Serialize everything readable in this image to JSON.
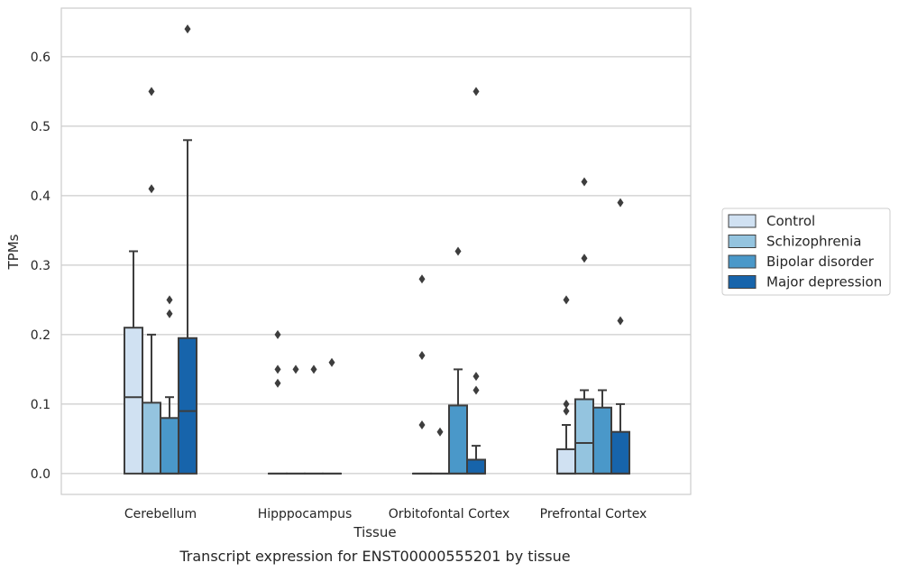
{
  "chart_data": {
    "type": "box",
    "title": "",
    "caption": "Transcript expression for ENST00000555201 by tissue",
    "xlabel": "Tissue",
    "ylabel": "TPMs",
    "ylim": [
      -0.03,
      0.67
    ],
    "yticks": [
      "0.0",
      "0.1",
      "0.2",
      "0.3",
      "0.4",
      "0.5",
      "0.6"
    ],
    "grid": "horizontal",
    "legend_position": "right",
    "categories": [
      "Cerebellum",
      "Hipppocampus",
      "Orbitofontal Cortex",
      "Prefrontal Cortex"
    ],
    "series": [
      {
        "name": "Control",
        "color": "#d0e1f2",
        "boxes": [
          {
            "q1": 0.0,
            "median": 0.11,
            "q3": 0.21,
            "whisker_low": 0.0,
            "whisker_high": 0.32,
            "fliers": []
          },
          {
            "q1": 0.0,
            "median": 0.0,
            "q3": 0.0,
            "whisker_low": 0.0,
            "whisker_high": 0.0,
            "fliers": [
              0.2,
              0.15,
              0.13
            ]
          },
          {
            "q1": 0.0,
            "median": 0.0,
            "q3": 0.0,
            "whisker_low": 0.0,
            "whisker_high": 0.0,
            "fliers": [
              0.28,
              0.17,
              0.07
            ]
          },
          {
            "q1": 0.0,
            "median": 0.0,
            "q3": 0.035,
            "whisker_low": 0.0,
            "whisker_high": 0.07,
            "fliers": [
              0.25,
              0.1,
              0.09
            ]
          }
        ]
      },
      {
        "name": "Schizophrenia",
        "color": "#94c4df",
        "boxes": [
          {
            "q1": 0.0,
            "median": 0.0,
            "q3": 0.102,
            "whisker_low": 0.0,
            "whisker_high": 0.2,
            "fliers": [
              0.55,
              0.41
            ]
          },
          {
            "q1": 0.0,
            "median": 0.0,
            "q3": 0.0,
            "whisker_low": 0.0,
            "whisker_high": 0.0,
            "fliers": [
              0.15
            ]
          },
          {
            "q1": 0.0,
            "median": 0.0,
            "q3": 0.0,
            "whisker_low": 0.0,
            "whisker_high": 0.0,
            "fliers": [
              0.06
            ]
          },
          {
            "q1": 0.0,
            "median": 0.044,
            "q3": 0.107,
            "whisker_low": 0.0,
            "whisker_high": 0.12,
            "fliers": [
              0.42,
              0.31
            ]
          }
        ]
      },
      {
        "name": "Bipolar disorder",
        "color": "#4a98c9",
        "boxes": [
          {
            "q1": 0.0,
            "median": 0.0,
            "q3": 0.08,
            "whisker_low": 0.0,
            "whisker_high": 0.11,
            "fliers": [
              0.25,
              0.23
            ]
          },
          {
            "q1": 0.0,
            "median": 0.0,
            "q3": 0.0,
            "whisker_low": 0.0,
            "whisker_high": 0.0,
            "fliers": [
              0.15
            ]
          },
          {
            "q1": 0.0,
            "median": 0.0,
            "q3": 0.098,
            "whisker_low": 0.0,
            "whisker_high": 0.15,
            "fliers": [
              0.32
            ]
          },
          {
            "q1": 0.0,
            "median": 0.0,
            "q3": 0.095,
            "whisker_low": 0.0,
            "whisker_high": 0.12,
            "fliers": []
          }
        ]
      },
      {
        "name": "Major depression",
        "color": "#1764ab",
        "boxes": [
          {
            "q1": 0.0,
            "median": 0.09,
            "q3": 0.195,
            "whisker_low": 0.0,
            "whisker_high": 0.48,
            "fliers": [
              0.64
            ]
          },
          {
            "q1": 0.0,
            "median": 0.0,
            "q3": 0.0,
            "whisker_low": 0.0,
            "whisker_high": 0.0,
            "fliers": [
              0.16
            ]
          },
          {
            "q1": 0.0,
            "median": 0.0,
            "q3": 0.02,
            "whisker_low": 0.0,
            "whisker_high": 0.04,
            "fliers": [
              0.55,
              0.14,
              0.12
            ]
          },
          {
            "q1": 0.0,
            "median": 0.0,
            "q3": 0.06,
            "whisker_low": 0.0,
            "whisker_high": 0.1,
            "fliers": [
              0.39,
              0.22
            ]
          }
        ]
      }
    ]
  }
}
